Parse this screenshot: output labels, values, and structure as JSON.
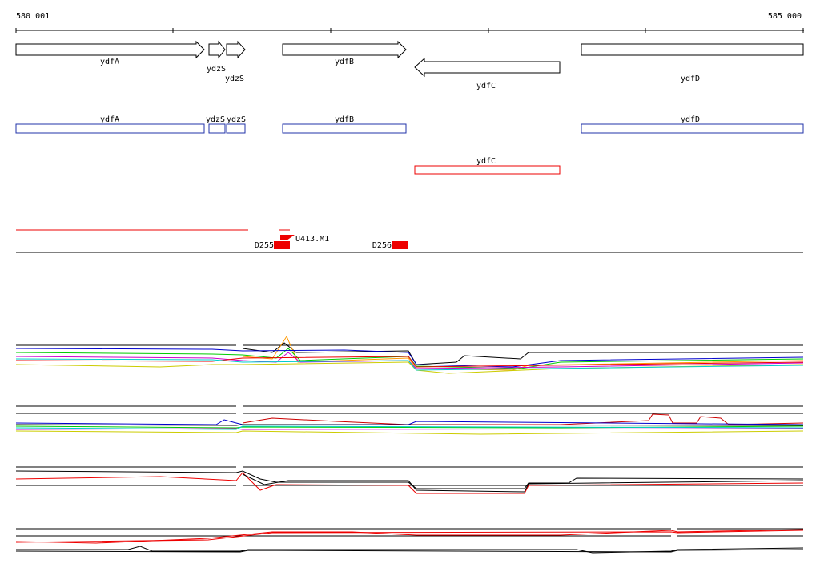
{
  "ruler": {
    "start": "580 001",
    "end": "585 000"
  },
  "genes": [
    {
      "label": "ydfA"
    },
    {
      "label": "ydzS"
    },
    {
      "label": "ydzS"
    },
    {
      "label": "ydfB"
    },
    {
      "label": "ydfC"
    },
    {
      "label": "ydfD"
    }
  ],
  "transcripts": [
    {
      "label": "ydfA"
    },
    {
      "label": "ydzS"
    },
    {
      "label": "ydzS"
    },
    {
      "label": "ydfB"
    },
    {
      "label": "ydfD"
    },
    {
      "label": "ydfC"
    }
  ],
  "features": [
    {
      "label": "D255"
    },
    {
      "label": "U413.M1"
    },
    {
      "label": "D256"
    }
  ]
}
